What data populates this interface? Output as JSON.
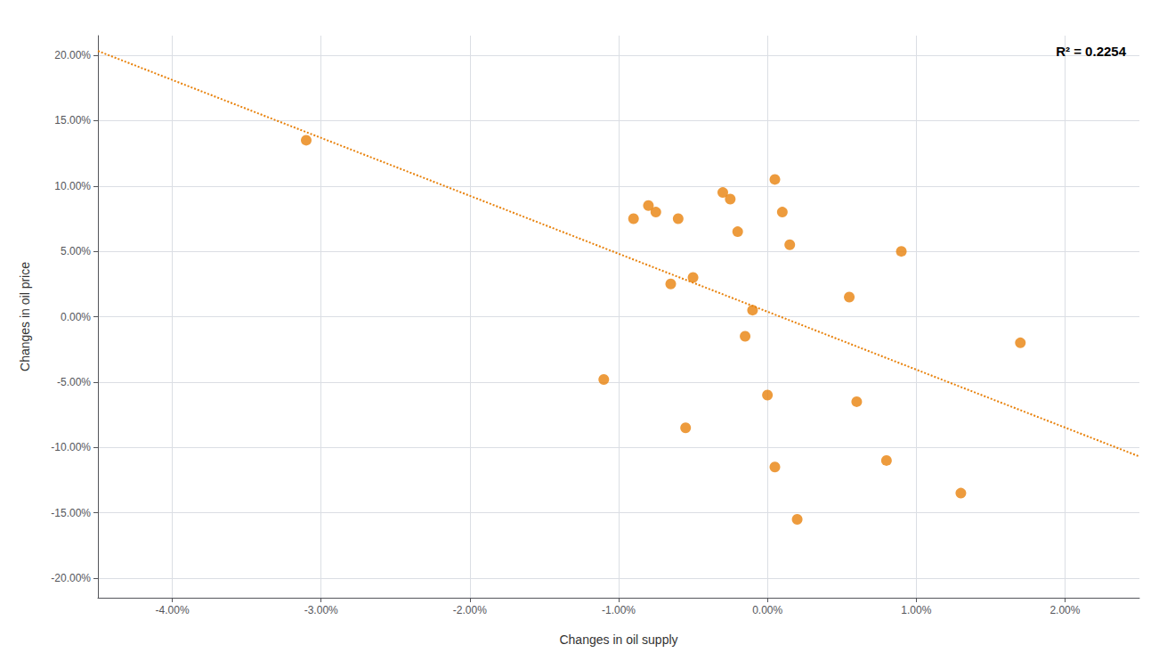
{
  "chart_data": {
    "type": "scatter",
    "xlabel": "Changes in oil supply",
    "ylabel": "Changes in oil price",
    "annotation": "R² = 0.2254",
    "grid": true,
    "series": [
      {
        "type": "scatter",
        "marker": "circle",
        "color": "#E8820C",
        "x": [
          -3.1,
          -1.1,
          -0.9,
          -0.8,
          -0.75,
          -0.65,
          -0.6,
          -0.55,
          -0.5,
          -0.3,
          -0.25,
          -0.2,
          -0.15,
          -0.1,
          0.0,
          0.05,
          0.05,
          0.1,
          0.15,
          0.2,
          0.55,
          0.6,
          0.8,
          0.9,
          1.3,
          1.7
        ],
        "values": [
          13.5,
          -4.8,
          7.5,
          8.5,
          8.0,
          2.5,
          7.5,
          -8.5,
          3.0,
          9.5,
          9.0,
          6.5,
          -1.5,
          0.5,
          -6.0,
          10.5,
          -11.5,
          8.0,
          5.5,
          -15.5,
          1.5,
          -6.5,
          -11.0,
          5.0,
          -13.5,
          -2.0
        ]
      },
      {
        "type": "line",
        "line_style": "dotted",
        "color": "#E8820C",
        "x": [
          -4.5,
          2.5
        ],
        "values": [
          20.3256,
          -10.6957
        ]
      }
    ],
    "xlim": [
      -4.5,
      2.5
    ],
    "ylim": [
      -21.5,
      21.5
    ],
    "xticks": [
      {
        "value": -4.0,
        "label": "-4.00%"
      },
      {
        "value": -3.0,
        "label": "-3.00%"
      },
      {
        "value": -2.0,
        "label": "-2.00%"
      },
      {
        "value": -1.0,
        "label": "-1.00%"
      },
      {
        "value": 0.0,
        "label": "0.00%"
      },
      {
        "value": 1.0,
        "label": "1.00%"
      },
      {
        "value": 2.0,
        "label": "2.00%"
      }
    ],
    "yticks": [
      {
        "value": -20.0,
        "label": "-20.00%"
      },
      {
        "value": -15.0,
        "label": "-15.00%"
      },
      {
        "value": -10.0,
        "label": "-10.00%"
      },
      {
        "value": -5.0,
        "label": "-5.00%"
      },
      {
        "value": 0.0,
        "label": "0.00%"
      },
      {
        "value": 5.0,
        "label": "5.00%"
      },
      {
        "value": 10.0,
        "label": "10.00%"
      },
      {
        "value": 15.0,
        "label": "15.00%"
      },
      {
        "value": 20.0,
        "label": "20.00%"
      }
    ]
  }
}
